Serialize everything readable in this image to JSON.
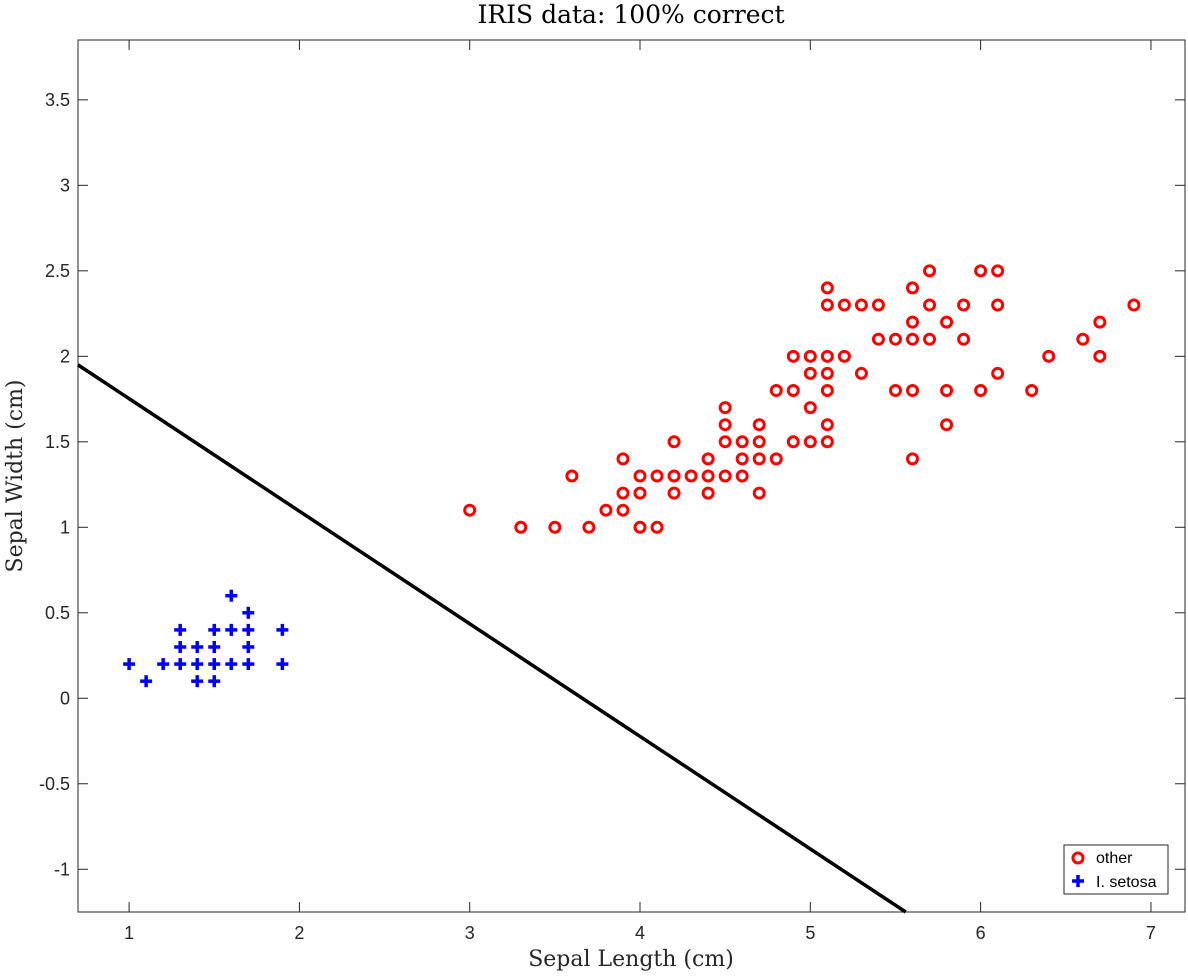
{
  "chart_data": {
    "type": "scatter",
    "title": "IRIS data: 100% correct",
    "xlabel": "Sepal Length (cm)",
    "ylabel": "Sepal Width (cm)",
    "xlim": [
      0.7,
      7.2
    ],
    "ylim": [
      -1.25,
      3.85
    ],
    "xticks": [
      1,
      2,
      3,
      4,
      5,
      6,
      7
    ],
    "yticks": [
      -1,
      -0.5,
      0,
      0.5,
      1,
      1.5,
      2,
      2.5,
      3,
      3.5
    ],
    "xtick_labels": [
      "1",
      "2",
      "3",
      "4",
      "5",
      "6",
      "7"
    ],
    "ytick_labels": [
      "-1",
      "-0.5",
      "0",
      "0.5",
      "1",
      "1.5",
      "2",
      "2.5",
      "3",
      "3.5"
    ],
    "grid": false,
    "legend_position": "bottom-right",
    "series": [
      {
        "name": "other",
        "marker": "circle",
        "color": "#ff0000",
        "points": [
          [
            3.0,
            1.1
          ],
          [
            3.3,
            1.0
          ],
          [
            3.5,
            1.0
          ],
          [
            3.6,
            1.3
          ],
          [
            3.7,
            1.0
          ],
          [
            3.8,
            1.1
          ],
          [
            3.9,
            1.1
          ],
          [
            3.9,
            1.2
          ],
          [
            3.9,
            1.4
          ],
          [
            4.0,
            1.0
          ],
          [
            4.0,
            1.2
          ],
          [
            4.0,
            1.3
          ],
          [
            4.1,
            1.0
          ],
          [
            4.1,
            1.3
          ],
          [
            4.2,
            1.2
          ],
          [
            4.2,
            1.3
          ],
          [
            4.2,
            1.5
          ],
          [
            4.3,
            1.3
          ],
          [
            4.4,
            1.2
          ],
          [
            4.4,
            1.3
          ],
          [
            4.4,
            1.4
          ],
          [
            4.5,
            1.3
          ],
          [
            4.5,
            1.5
          ],
          [
            4.5,
            1.6
          ],
          [
            4.5,
            1.7
          ],
          [
            4.6,
            1.3
          ],
          [
            4.6,
            1.4
          ],
          [
            4.6,
            1.5
          ],
          [
            4.7,
            1.2
          ],
          [
            4.7,
            1.4
          ],
          [
            4.7,
            1.5
          ],
          [
            4.7,
            1.6
          ],
          [
            4.8,
            1.4
          ],
          [
            4.8,
            1.8
          ],
          [
            4.9,
            1.5
          ],
          [
            4.9,
            1.8
          ],
          [
            4.9,
            2.0
          ],
          [
            5.0,
            1.5
          ],
          [
            5.0,
            1.7
          ],
          [
            5.0,
            1.9
          ],
          [
            5.0,
            2.0
          ],
          [
            5.1,
            1.5
          ],
          [
            5.1,
            1.6
          ],
          [
            5.1,
            1.8
          ],
          [
            5.1,
            1.9
          ],
          [
            5.1,
            2.0
          ],
          [
            5.1,
            2.3
          ],
          [
            5.1,
            2.4
          ],
          [
            5.2,
            2.0
          ],
          [
            5.2,
            2.3
          ],
          [
            5.3,
            1.9
          ],
          [
            5.3,
            2.3
          ],
          [
            5.4,
            2.1
          ],
          [
            5.4,
            2.3
          ],
          [
            5.5,
            1.8
          ],
          [
            5.5,
            2.1
          ],
          [
            5.6,
            1.4
          ],
          [
            5.6,
            1.8
          ],
          [
            5.6,
            2.1
          ],
          [
            5.6,
            2.2
          ],
          [
            5.6,
            2.4
          ],
          [
            5.7,
            2.1
          ],
          [
            5.7,
            2.3
          ],
          [
            5.7,
            2.5
          ],
          [
            5.8,
            1.6
          ],
          [
            5.8,
            1.8
          ],
          [
            5.8,
            2.2
          ],
          [
            5.9,
            2.1
          ],
          [
            5.9,
            2.3
          ],
          [
            6.0,
            1.8
          ],
          [
            6.0,
            2.5
          ],
          [
            6.1,
            1.9
          ],
          [
            6.1,
            2.3
          ],
          [
            6.1,
            2.5
          ],
          [
            6.3,
            1.8
          ],
          [
            6.4,
            2.0
          ],
          [
            6.6,
            2.1
          ],
          [
            6.7,
            2.0
          ],
          [
            6.7,
            2.2
          ],
          [
            6.9,
            2.3
          ]
        ]
      },
      {
        "name": "I. setosa",
        "marker": "plus",
        "color": "#0000ff",
        "points": [
          [
            1.0,
            0.2
          ],
          [
            1.1,
            0.1
          ],
          [
            1.2,
            0.2
          ],
          [
            1.3,
            0.2
          ],
          [
            1.3,
            0.3
          ],
          [
            1.3,
            0.4
          ],
          [
            1.4,
            0.1
          ],
          [
            1.4,
            0.2
          ],
          [
            1.4,
            0.3
          ],
          [
            1.5,
            0.1
          ],
          [
            1.5,
            0.2
          ],
          [
            1.5,
            0.3
          ],
          [
            1.5,
            0.4
          ],
          [
            1.6,
            0.2
          ],
          [
            1.6,
            0.4
          ],
          [
            1.6,
            0.6
          ],
          [
            1.7,
            0.2
          ],
          [
            1.7,
            0.3
          ],
          [
            1.7,
            0.4
          ],
          [
            1.7,
            0.5
          ],
          [
            1.9,
            0.2
          ],
          [
            1.9,
            0.4
          ]
        ]
      }
    ],
    "decision_boundary": {
      "color": "#000000",
      "points": [
        [
          0.7,
          1.95
        ],
        [
          5.56,
          -1.25
        ]
      ]
    }
  }
}
